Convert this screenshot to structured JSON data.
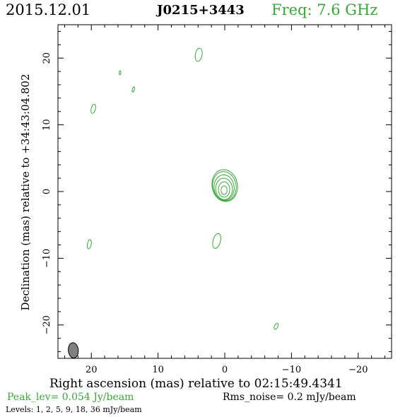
{
  "header": {
    "date": "2015.12.01",
    "source": "J0215+3443",
    "frequency_label": "Freq: 7.6 GHz"
  },
  "footer": {
    "peak": "Peak_lev=  0.054 Jy/beam",
    "rms": "Rms_noise=  0.2 mJy/beam",
    "levels": "Levels:   1,   2,   5,   9,   18,  36 mJy/beam"
  },
  "colors": {
    "contour": "#3aa63a",
    "frame": "#000000",
    "beam_fill": "#808080"
  },
  "chart_data": {
    "type": "contour",
    "xlabel": "Right ascension (mas) relative to 02:15:49.4341",
    "ylabel": "Declination (mas) relative to +34:43:04.802",
    "xlim": [
      25,
      -25
    ],
    "ylim": [
      -25,
      25
    ],
    "x_ticks": [
      20,
      10,
      0,
      -10,
      -20
    ],
    "y_ticks": [
      20,
      10,
      0,
      -10,
      -20
    ],
    "x_tick_labels": [
      "20",
      "10",
      "0",
      "−10",
      "−20"
    ],
    "y_tick_labels": [
      "20",
      "10",
      "0",
      "−10",
      "−20"
    ],
    "contour_levels_mJy": [
      1,
      2,
      5,
      9,
      18,
      36
    ],
    "contours": [
      {
        "x": 0.0,
        "y": 0.9,
        "rx": 1.9,
        "ry": 2.4,
        "angle": -10
      },
      {
        "x": 0.05,
        "y": 0.8,
        "rx": 1.75,
        "ry": 2.2,
        "angle": -10
      },
      {
        "x": 0.1,
        "y": 0.6,
        "rx": 1.5,
        "ry": 1.9,
        "angle": -5
      },
      {
        "x": 0.1,
        "y": 0.4,
        "rx": 1.25,
        "ry": 1.6,
        "angle": -5
      },
      {
        "x": 0.1,
        "y": 0.3,
        "rx": 0.85,
        "ry": 1.15,
        "angle": 0
      },
      {
        "x": 0.1,
        "y": 0.2,
        "rx": 0.45,
        "ry": 0.65,
        "angle": 0
      },
      {
        "x": 3.9,
        "y": 20.5,
        "rx": 0.5,
        "ry": 1.0,
        "angle": 10
      },
      {
        "x": 15.7,
        "y": 17.8,
        "rx": 0.12,
        "ry": 0.3,
        "angle": 0
      },
      {
        "x": 13.7,
        "y": 15.3,
        "rx": 0.15,
        "ry": 0.4,
        "angle": 15
      },
      {
        "x": 19.7,
        "y": 12.4,
        "rx": 0.32,
        "ry": 0.7,
        "angle": 15
      },
      {
        "x": 1.2,
        "y": -7.4,
        "rx": 0.55,
        "ry": 1.15,
        "angle": 15
      },
      {
        "x": 20.3,
        "y": -7.9,
        "rx": 0.28,
        "ry": 0.7,
        "angle": 10
      },
      {
        "x": -7.7,
        "y": -20.2,
        "rx": 0.25,
        "ry": 0.5,
        "angle": 25
      }
    ],
    "beam": {
      "x": 22.7,
      "y": -23.8,
      "rx": 0.75,
      "ry": 1.15,
      "angle": -5
    }
  }
}
